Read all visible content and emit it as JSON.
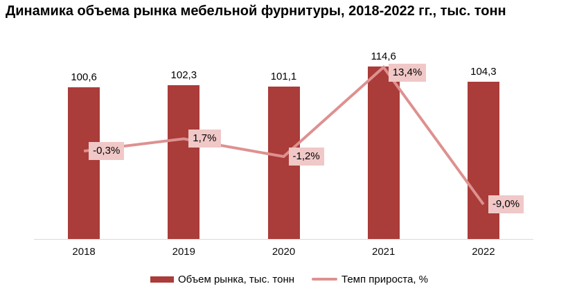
{
  "title": "Динамика объема рынка мебельной фурнитуры, 2018-2022 гг., тыс. тонн",
  "colors": {
    "bar": "#aa3c39",
    "line": "#dd9190",
    "line_label_bg": "#f0c8c7",
    "axis_line": "#d9d9d9",
    "text": "#000000"
  },
  "chart_data": {
    "type": "bar",
    "subtype": "combo-bar-line",
    "title": "Динамика объема рынка мебельной фурнитуры, 2018-2022 гг., тыс. тонн",
    "categories": [
      "2018",
      "2019",
      "2020",
      "2021",
      "2022"
    ],
    "series": [
      {
        "name": "Объем рынка, тыс. тонн",
        "type": "bar",
        "axis": "primary",
        "color": "#aa3c39",
        "values": [
          100.6,
          102.3,
          101.1,
          114.6,
          104.3
        ],
        "labels": [
          "100,6",
          "102,3",
          "101,1",
          "114,6",
          "104,3"
        ]
      },
      {
        "name": "Темп прироста, %",
        "type": "line",
        "axis": "secondary",
        "color": "#dd9190",
        "label_bg": "#f0c8c7",
        "values": [
          -0.3,
          1.7,
          -1.2,
          13.4,
          -9.0
        ],
        "labels": [
          "-0,3%",
          "1,7%",
          "-1,2%",
          "13,4%",
          "-9,0%"
        ]
      }
    ],
    "xlabel": "",
    "ylabel": "",
    "axes_hidden": true,
    "grid": false,
    "legend_position": "bottom",
    "legend": [
      "Объем рынка, тыс. тонн",
      "Темп прироста, %"
    ]
  },
  "legend": {
    "bar_label": "Объем рынка, тыс. тонн",
    "line_label": "Темп прироста, %"
  }
}
